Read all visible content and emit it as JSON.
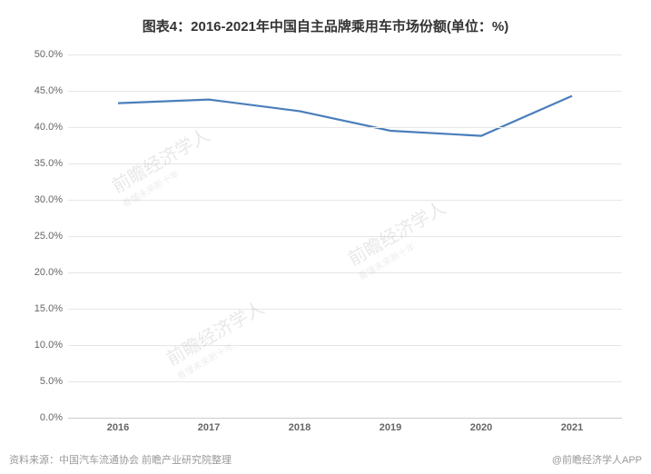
{
  "title": "图表4：2016-2021年中国自主品牌乘用车市场份额(单位：%)",
  "chart": {
    "type": "line",
    "categories": [
      "2016",
      "2017",
      "2018",
      "2019",
      "2020",
      "2021"
    ],
    "values": [
      43.3,
      43.8,
      42.2,
      39.5,
      38.8,
      44.3
    ],
    "line_color": "#4a7ebb",
    "line_width": 2.2,
    "background_color": "#ffffff",
    "grid_color": "#e6e6e6",
    "axis_color": "#cccccc",
    "ylim": [
      0,
      50
    ],
    "ytick_step": 5,
    "y_format_suffix": ".0%",
    "label_fontsize": 11,
    "label_color": "#666666",
    "title_fontsize": 15,
    "title_color": "#333333"
  },
  "footer": {
    "source": "资料来源：中国汽车流通协会 前瞻产业研究院整理",
    "brand": "@前瞻经济学人APP"
  },
  "watermark": {
    "text": "前瞻经济学人",
    "sub": "看懂未来新十年"
  }
}
